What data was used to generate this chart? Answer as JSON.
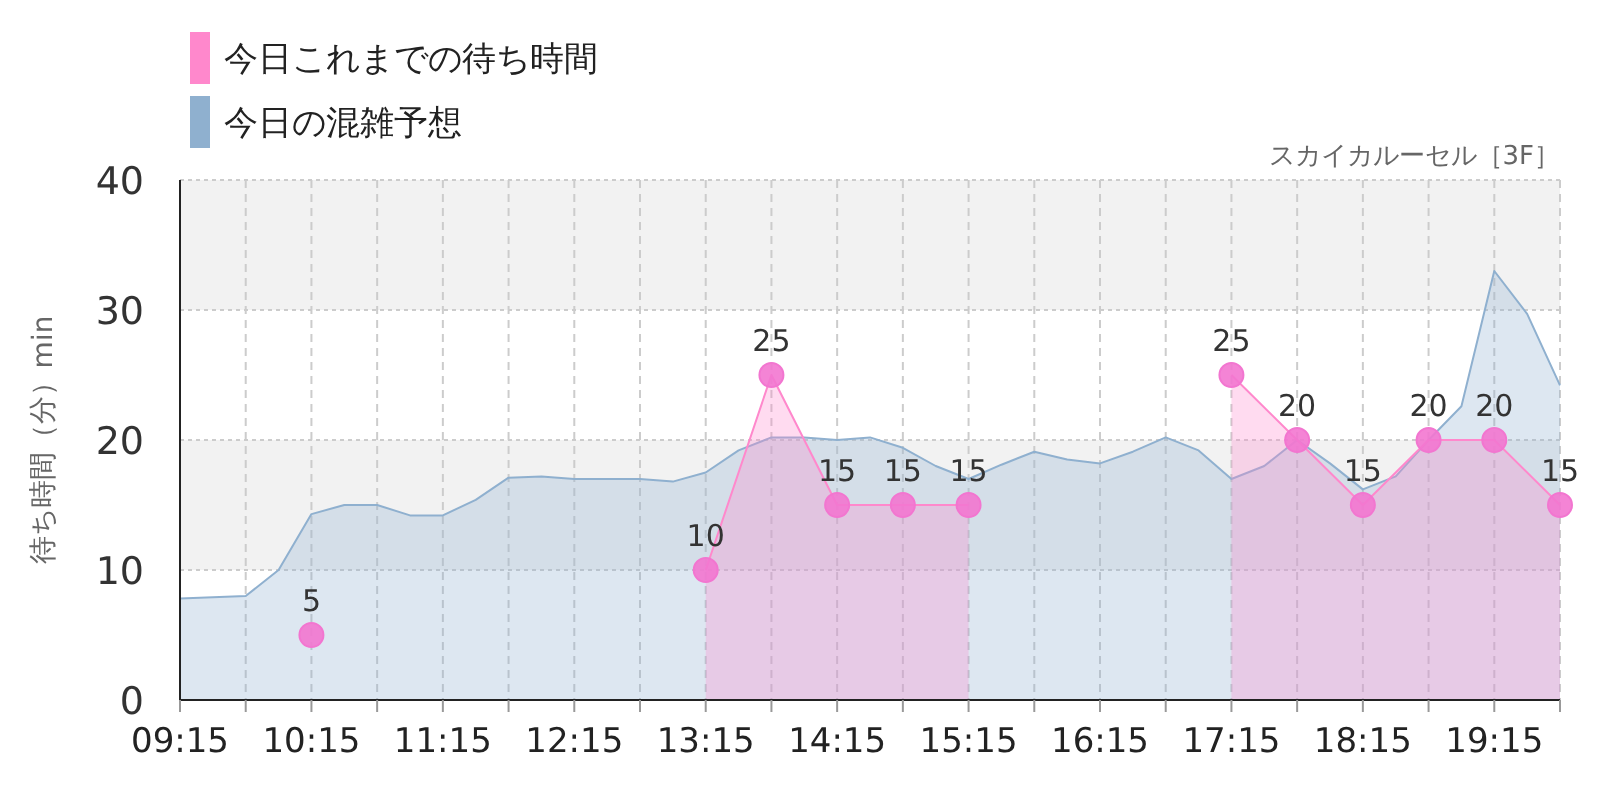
{
  "chart_data": {
    "type": "area",
    "subtitle": "スカイカルーセル［3F］",
    "ylabel": "待ち時間（分）min",
    "xlim": [
      9.25,
      19.75
    ],
    "xticks": [
      {
        "value": 9.25,
        "label": "09:15"
      },
      {
        "value": 9.75,
        "label": null
      },
      {
        "value": 10.25,
        "label": "10:15"
      },
      {
        "value": 10.75,
        "label": null
      },
      {
        "value": 11.25,
        "label": "11:15"
      },
      {
        "value": 11.75,
        "label": null
      },
      {
        "value": 12.25,
        "label": "12:15"
      },
      {
        "value": 12.75,
        "label": null
      },
      {
        "value": 13.25,
        "label": "13:15"
      },
      {
        "value": 13.75,
        "label": null
      },
      {
        "value": 14.25,
        "label": "14:15"
      },
      {
        "value": 14.75,
        "label": null
      },
      {
        "value": 15.25,
        "label": "15:15"
      },
      {
        "value": 15.75,
        "label": null
      },
      {
        "value": 16.25,
        "label": "16:15"
      },
      {
        "value": 16.75,
        "label": null
      },
      {
        "value": 17.25,
        "label": "17:15"
      },
      {
        "value": 17.75,
        "label": null
      },
      {
        "value": 18.25,
        "label": "18:15"
      },
      {
        "value": 18.75,
        "label": null
      },
      {
        "value": 19.25,
        "label": "19:15"
      },
      {
        "value": 19.75,
        "label": null
      }
    ],
    "ylim": [
      0,
      40
    ],
    "yticks": [
      0,
      10,
      20,
      30,
      40
    ],
    "grid": true,
    "legend": "top left",
    "bands": [
      {
        "axis": "y",
        "from": 10,
        "to": 20,
        "color": "#f2f2f2"
      },
      {
        "axis": "y",
        "from": 30,
        "to": 40,
        "color": "#f2f2f2"
      }
    ],
    "series": [
      {
        "name": "今日の混雑予想",
        "color": "#8fb0cf",
        "marker": "none",
        "x": [
          9.25,
          9.75,
          10.0,
          10.25,
          10.5,
          10.75,
          11.0,
          11.25,
          11.5,
          11.75,
          12.0,
          12.25,
          12.5,
          12.75,
          13.0,
          13.25,
          13.5,
          13.75,
          14.0,
          14.25,
          14.5,
          14.75,
          15.0,
          15.25,
          15.5,
          15.75,
          16.0,
          16.25,
          16.5,
          16.75,
          17.0,
          17.25,
          17.5,
          17.75,
          18.0,
          18.25,
          18.5,
          18.75,
          19.0,
          19.25,
          19.5,
          19.75
        ],
        "values": [
          7.8,
          8,
          10,
          14.3,
          15,
          15,
          14.2,
          14.2,
          15.4,
          17.1,
          17.2,
          17,
          17,
          17,
          16.8,
          17.5,
          19.2,
          20.2,
          20.2,
          20,
          20.2,
          19.4,
          18,
          17,
          18.1,
          19.1,
          18.5,
          18.2,
          19.1,
          20.2,
          19.2,
          17,
          18,
          20,
          18.2,
          16.2,
          17.2,
          20,
          22.6,
          33,
          29.7,
          24.2
        ]
      },
      {
        "type": "scatter",
        "color": "#ff88cc",
        "x": [
          10.25
        ],
        "values": [
          5
        ],
        "value_labels": [
          "5"
        ]
      },
      {
        "color": "#ff88cc",
        "marker": "circle",
        "x": [
          17.25,
          17.75,
          18.25,
          18.75,
          19.25,
          19.75
        ],
        "values": [
          25,
          20,
          15,
          20,
          20,
          15
        ],
        "value_labels": [
          "25",
          "20",
          "15",
          "20",
          "20",
          "15"
        ]
      },
      {
        "name": "今日これまでの待ち時間",
        "color": "#ff88cc",
        "marker": "circle",
        "x": [
          13.25,
          13.75,
          14.25,
          14.75,
          15.25
        ],
        "values": [
          10,
          25,
          15,
          15,
          15
        ],
        "value_labels": [
          "10",
          "25",
          "15",
          "15",
          "15"
        ]
      }
    ]
  }
}
